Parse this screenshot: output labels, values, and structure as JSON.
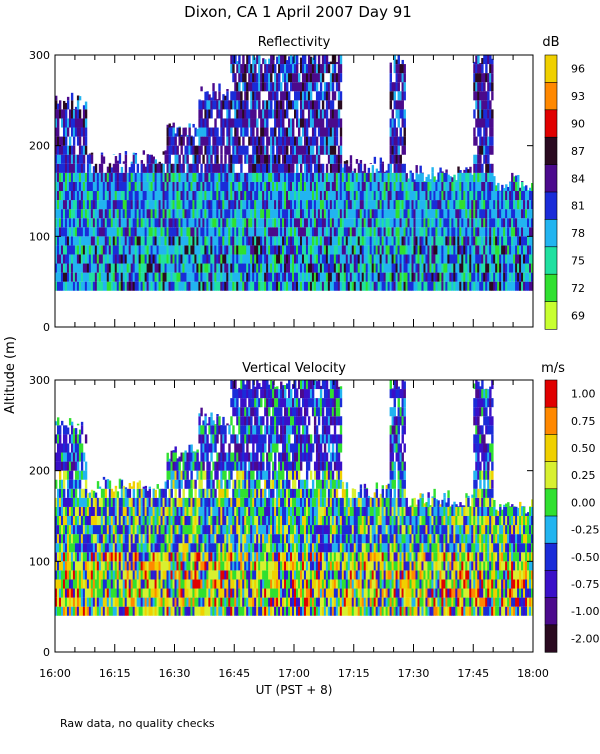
{
  "title": "Dixon, CA   1 April 2007   Day  91",
  "y_axis_label": "Altitude (m)",
  "x_axis_label": "UT   (PST + 8)",
  "footnote": "Raw data, no quality checks",
  "chart_data": [
    {
      "type": "heatmap",
      "title": "Reflectivity",
      "units": "dB",
      "ylabel": "Altitude (m)",
      "xlabel": "UT   (PST + 8)",
      "xlim": [
        "16:00",
        "18:00"
      ],
      "ylim": [
        0,
        300
      ],
      "x_ticks": [
        "16:00",
        "16:15",
        "16:30",
        "16:45",
        "17:00",
        "17:15",
        "17:30",
        "17:45",
        "18:00"
      ],
      "y_ticks": [
        0,
        100,
        200,
        300
      ],
      "data_altitude_range": [
        40,
        300
      ],
      "colorbar": {
        "labels": [
          "96",
          "93",
          "90",
          "87",
          "84",
          "81",
          "78",
          "75",
          "72",
          "69"
        ],
        "colors": [
          "#f0d000",
          "#ff8800",
          "#e00000",
          "#2a0a20",
          "#4b0a8c",
          "#1a2cd8",
          "#22b4f0",
          "#20e0a0",
          "#30e030",
          "#c8ff30"
        ]
      }
    },
    {
      "type": "heatmap",
      "title": "Vertical Velocity",
      "units": "m/s",
      "ylabel": "Altitude (m)",
      "xlabel": "UT   (PST + 8)",
      "xlim": [
        "16:00",
        "18:00"
      ],
      "ylim": [
        0,
        300
      ],
      "x_ticks": [
        "16:00",
        "16:15",
        "16:30",
        "16:45",
        "17:00",
        "17:15",
        "17:30",
        "17:45",
        "18:00"
      ],
      "y_ticks": [
        0,
        100,
        200,
        300
      ],
      "data_altitude_range": [
        40,
        300
      ],
      "colorbar": {
        "labels": [
          "1.00",
          "0.75",
          "0.50",
          "0.25",
          "0.00",
          "-0.25",
          "-0.50",
          "-0.75",
          "-1.00",
          "-2.00"
        ],
        "colors": [
          "#e00000",
          "#ff8800",
          "#f0d000",
          "#d8f030",
          "#30e030",
          "#22b4f0",
          "#1a2cd8",
          "#3a10c8",
          "#4b0a8c",
          "#2a0a20"
        ]
      }
    }
  ]
}
